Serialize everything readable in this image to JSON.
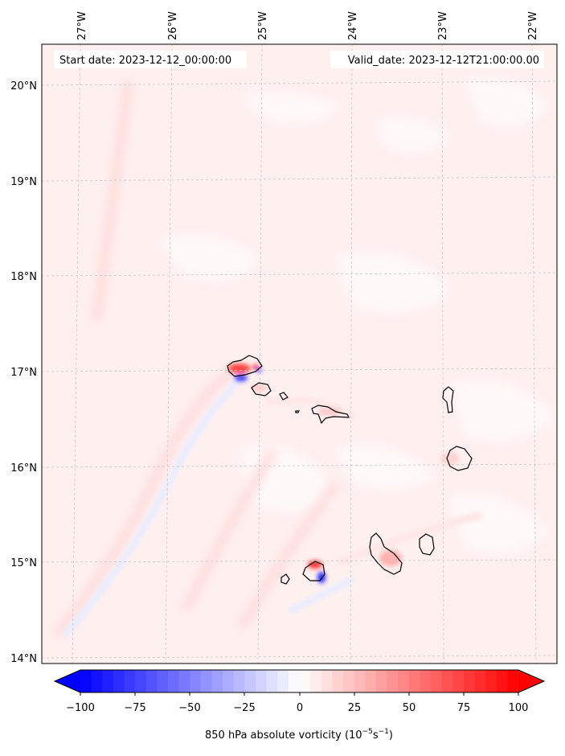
{
  "header": {
    "start_date": "Start date: 2023-12-12_00:00:00",
    "valid_date": "Valid_date: 2023-12-12T21:00:00.00"
  },
  "map": {
    "lon_labels": [
      "27°W",
      "26°W",
      "25°W",
      "24°W",
      "23°W",
      "22°W"
    ],
    "lat_labels": [
      "20°N",
      "19°N",
      "18°N",
      "17°N",
      "16°N",
      "15°N",
      "14°N"
    ]
  },
  "colorbar": {
    "ticks": [
      "−100",
      "−75",
      "−50",
      "−25",
      "0",
      "25",
      "50",
      "75",
      "100"
    ],
    "label_main": "850 hPa absolute vorticity (10",
    "label_exp1": "−5",
    "label_mid": "s",
    "label_exp2": "−1",
    "label_end": ")",
    "vmin": -100,
    "vmax": 100,
    "negative_color": "#0000ff",
    "positive_color": "#ff0000",
    "neutral_color": "#ffffff"
  }
}
